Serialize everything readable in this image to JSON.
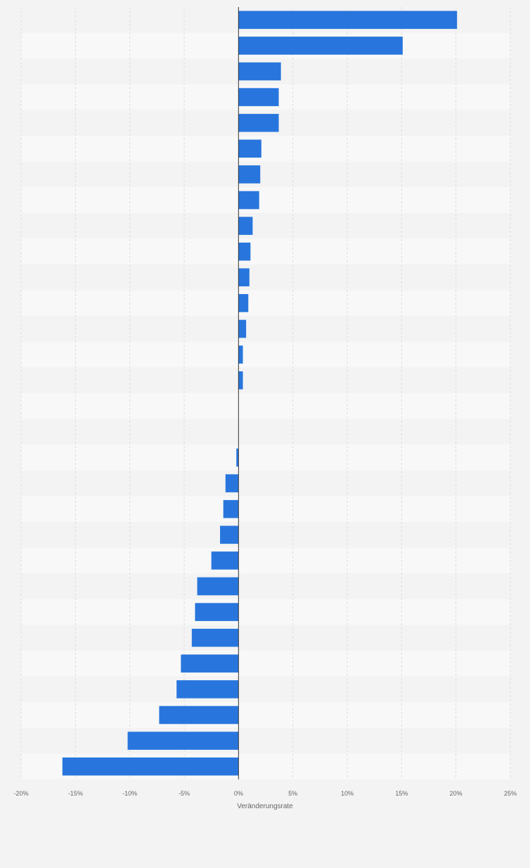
{
  "chart_data": {
    "type": "bar",
    "orientation": "horizontal",
    "xlabel": "Veränderungsrate",
    "xlim": [
      -20,
      25
    ],
    "x_ticks": [
      -20,
      -15,
      -10,
      -5,
      0,
      5,
      10,
      15,
      20,
      25
    ],
    "x_tick_labels": [
      "-20%",
      "-15%",
      "-10%",
      "-5%",
      "0%",
      "5%",
      "10%",
      "15%",
      "20%",
      "25%"
    ],
    "grid": true,
    "bar_color": "#2876dd",
    "values": [
      20.1,
      15.1,
      3.9,
      3.7,
      3.7,
      2.1,
      2.0,
      1.9,
      1.3,
      1.1,
      1.0,
      0.9,
      0.7,
      0.4,
      0.4,
      0.0,
      0.0,
      -0.2,
      -1.2,
      -1.4,
      -1.7,
      -2.5,
      -3.8,
      -4.0,
      -4.3,
      -5.3,
      -5.7,
      -7.3,
      -10.2,
      -16.2
    ]
  }
}
